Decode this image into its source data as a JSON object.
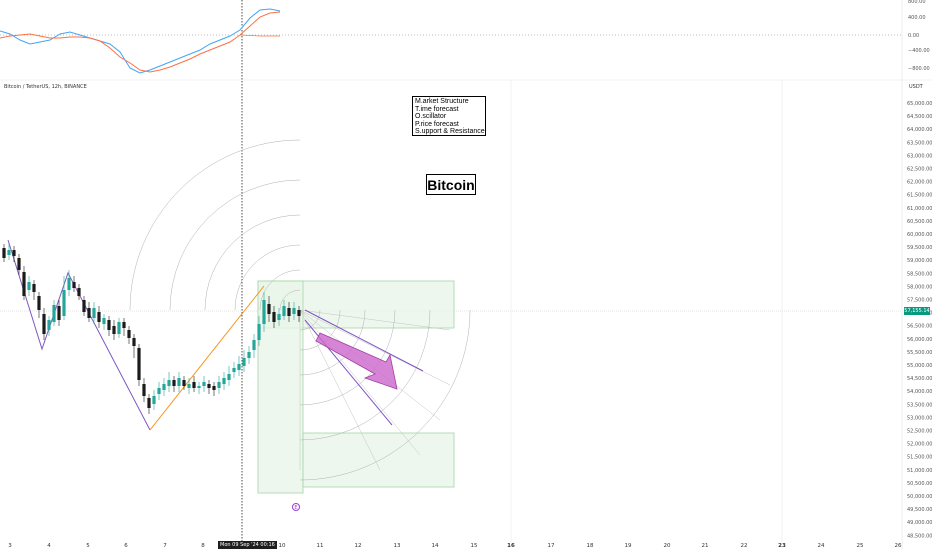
{
  "symbol_label": "Bitcoin / TetherUS, 12h, BINANCE",
  "currency": "USDT",
  "title_box": "Bitcoin",
  "notes": [
    "M.arket Structure",
    "T.ime forecast",
    "O.scillator",
    "P.rice forecast",
    "S.upport & Resistance"
  ],
  "crosshair_date": "Mon 09 Sep '24   00:16",
  "last_price": "57,155.14",
  "event_marker": "E",
  "oscillator_axis": [
    "800.00",
    "400.00",
    "0.00",
    "−400.00",
    "−800.00"
  ],
  "price_axis": [
    "65,000.00",
    "64,500.00",
    "64,000.00",
    "63,500.00",
    "63,000.00",
    "62,500.00",
    "62,000.00",
    "61,500.00",
    "61,000.00",
    "60,500.00",
    "60,000.00",
    "59,500.00",
    "59,000.00",
    "58,500.00",
    "58,000.00",
    "57,500.00",
    "57,000.00",
    "56,500.00",
    "56,000.00",
    "55,500.00",
    "55,000.00",
    "54,500.00",
    "54,000.00",
    "53,500.00",
    "53,000.00",
    "52,500.00",
    "52,000.00",
    "51,500.00",
    "51,000.00",
    "50,500.00",
    "50,000.00",
    "49,500.00",
    "49,000.00",
    "48,500.00"
  ],
  "time_axis": [
    "3",
    "4",
    "5",
    "6",
    "7",
    "8",
    "10",
    "11",
    "12",
    "13",
    "14",
    "15",
    "16",
    "17",
    "18",
    "19",
    "20",
    "21",
    "22",
    "23",
    "24",
    "25",
    "26"
  ],
  "colors": {
    "up": "#26a69a",
    "down": "#1b1b1b",
    "zigzag_up": "#f7931a",
    "zigzag_down": "#7e57c2",
    "forecast_arrow": "#cc66cc",
    "forecast_box_fill": "#e8f5e9",
    "forecast_box_stroke": "#a5d6a7",
    "osc_blue": "#42a5f5",
    "osc_orange": "#ff7043"
  }
}
